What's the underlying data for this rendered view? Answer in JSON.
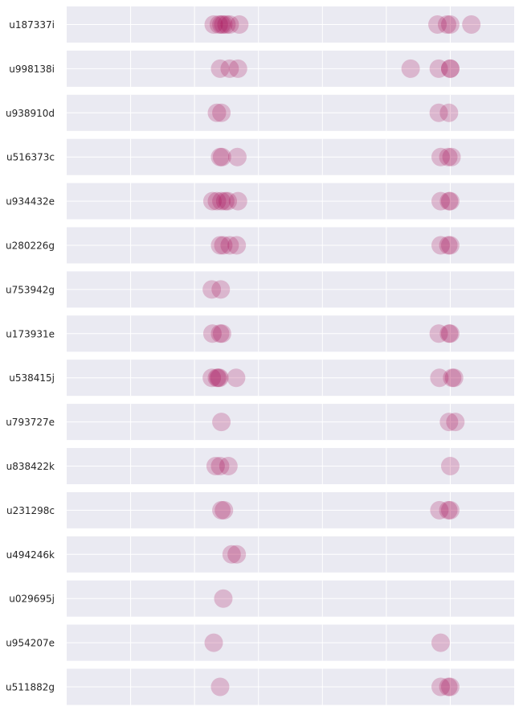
{
  "chart_data": {
    "type": "scatter",
    "title": "",
    "xlabel": "",
    "ylabel": "",
    "grid": true,
    "legend": "none",
    "marker_color": "#a3004f",
    "panel_color": "#eaeaf2",
    "grid_color": "#ffffff",
    "xlim": [
      0,
      7
    ],
    "x_gridlines": [
      1,
      2,
      3,
      4,
      5,
      6
    ],
    "rows": [
      {
        "label": "u187337i",
        "points": [
          2.3,
          2.38,
          2.42,
          2.45,
          2.5,
          2.55,
          2.7,
          5.8,
          5.95,
          6.0,
          6.33
        ]
      },
      {
        "label": "u998138i",
        "points": [
          2.4,
          2.55,
          2.68,
          5.38,
          5.82,
          6.0,
          6.0
        ]
      },
      {
        "label": "u938910d",
        "points": [
          2.35,
          2.42,
          5.82,
          5.98
        ]
      },
      {
        "label": "u516373c",
        "points": [
          2.4,
          2.43,
          2.67,
          5.85,
          5.97,
          6.02
        ]
      },
      {
        "label": "u934432e",
        "points": [
          2.28,
          2.35,
          2.42,
          2.48,
          2.52,
          2.68,
          5.85,
          5.98,
          6.0
        ]
      },
      {
        "label": "u280226g",
        "points": [
          2.4,
          2.45,
          2.55,
          2.66,
          5.85,
          5.97,
          6.0
        ]
      },
      {
        "label": "u753942g",
        "points": [
          2.27,
          2.41
        ]
      },
      {
        "label": "u173931e",
        "points": [
          2.28,
          2.4,
          2.43,
          5.82,
          5.98,
          6.0
        ]
      },
      {
        "label": "u538415j",
        "points": [
          2.27,
          2.35,
          2.37,
          2.39,
          2.65,
          5.83,
          6.03,
          6.06
        ]
      },
      {
        "label": "u793727e",
        "points": [
          2.42,
          5.98,
          6.08
        ]
      },
      {
        "label": "u838422k",
        "points": [
          2.33,
          2.4,
          2.53,
          6.0
        ]
      },
      {
        "label": "u231298c",
        "points": [
          2.42,
          2.46,
          5.83,
          5.97,
          6.0
        ]
      },
      {
        "label": "u494246k",
        "points": [
          2.58,
          2.66
        ]
      },
      {
        "label": "u029695j",
        "points": [
          2.45
        ]
      },
      {
        "label": "u954207e",
        "points": [
          2.3,
          5.85
        ]
      },
      {
        "label": "u511882g",
        "points": [
          2.4,
          5.85,
          5.97,
          6.0
        ]
      }
    ]
  }
}
